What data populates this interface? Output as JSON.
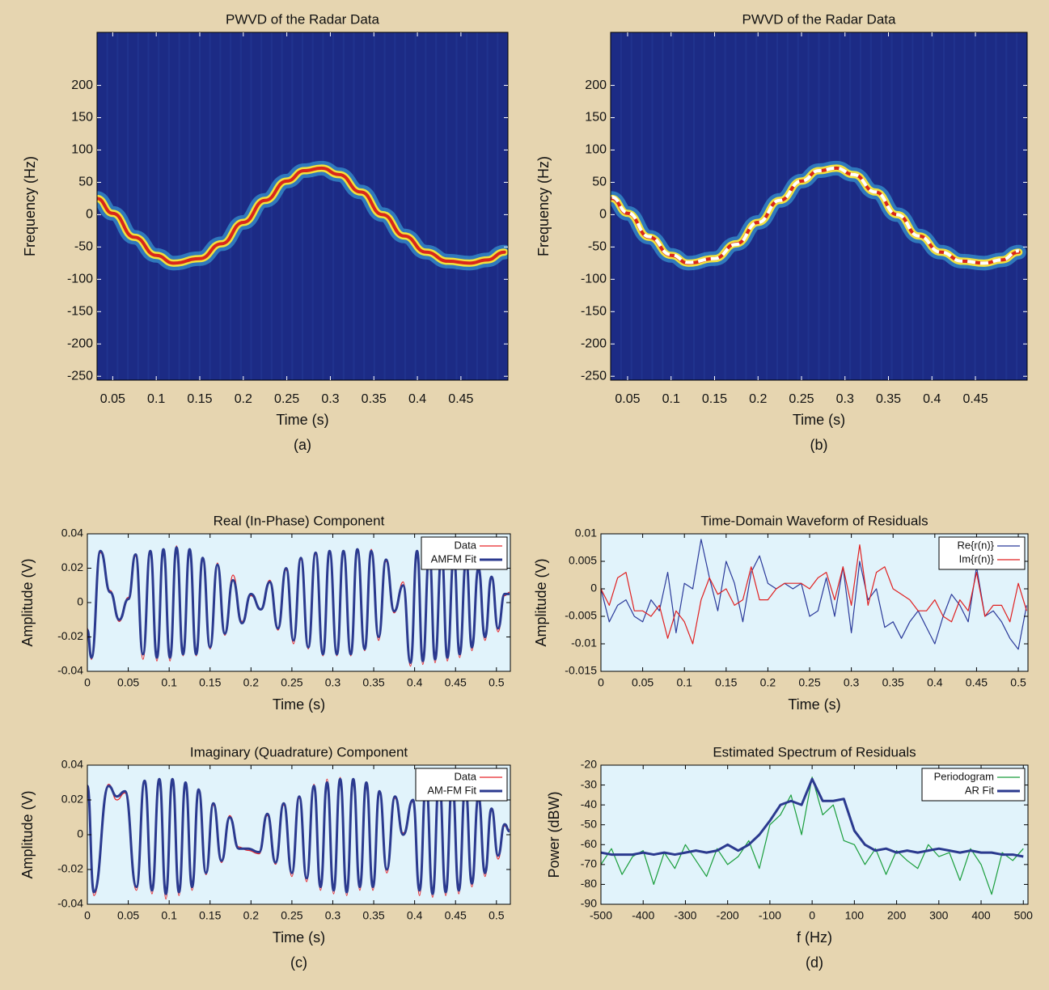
{
  "chart_data": [
    {
      "type": "tfr",
      "title": "PWVD of the Radar Data",
      "xlabel": "Time (s)",
      "ylabel": "Frequency (Hz)",
      "caption": "(a)",
      "xlim": [
        0.032,
        0.504
      ],
      "ylim": [
        -256,
        282
      ],
      "xticks": [
        0.05,
        0.1,
        0.15,
        0.2,
        0.25,
        0.3,
        0.35,
        0.4,
        0.45
      ],
      "yticks": [
        -250,
        -200,
        -150,
        -100,
        -50,
        0,
        50,
        100,
        150,
        200
      ],
      "x": [
        0.032,
        0.05,
        0.075,
        0.1,
        0.12,
        0.15,
        0.175,
        0.2,
        0.225,
        0.25,
        0.27,
        0.29,
        0.31,
        0.335,
        0.36,
        0.385,
        0.41,
        0.435,
        0.46,
        0.48,
        0.5
      ],
      "series": [
        {
          "style": "ridge",
          "color": "#d8261b",
          "values": [
            25,
            2,
            -35,
            -63,
            -75,
            -68,
            -45,
            -12,
            22,
            52,
            68,
            72,
            62,
            35,
            0,
            -33,
            -58,
            -72,
            -75,
            -70,
            -58
          ]
        }
      ]
    },
    {
      "type": "tfr",
      "title": "PWVD of the Radar Data",
      "xlabel": "Time (s)",
      "ylabel": "Frequency (Hz)",
      "caption": "(b)",
      "xlim": [
        0.0305,
        0.5095
      ],
      "ylim": [
        -256,
        282
      ],
      "xticks": [
        0.05,
        0.1,
        0.15,
        0.2,
        0.25,
        0.3,
        0.35,
        0.4,
        0.45
      ],
      "yticks": [
        -250,
        -200,
        -150,
        -100,
        -50,
        0,
        50,
        100,
        150,
        200
      ],
      "x": [
        0.032,
        0.05,
        0.075,
        0.1,
        0.12,
        0.15,
        0.175,
        0.2,
        0.225,
        0.25,
        0.27,
        0.29,
        0.31,
        0.335,
        0.36,
        0.385,
        0.41,
        0.435,
        0.46,
        0.48,
        0.5
      ],
      "series": [
        {
          "style": "ridge",
          "color": "#d8261b",
          "values": [
            25,
            2,
            -35,
            -63,
            -75,
            -68,
            -45,
            -12,
            22,
            52,
            68,
            72,
            62,
            35,
            0,
            -33,
            -58,
            -72,
            -75,
            -70,
            -58
          ]
        },
        {
          "style": "dashed",
          "color": "#ffffff",
          "values": [
            27,
            3,
            -34,
            -62,
            -74,
            -68,
            -46,
            -12,
            22,
            52,
            68,
            72,
            62,
            35,
            0,
            -33,
            -58,
            -72,
            -75,
            -70,
            -56
          ]
        }
      ]
    },
    {
      "type": "line",
      "smooth": true,
      "title": "Real (In-Phase) Component",
      "xlabel": "Time (s)",
      "ylabel": "Amplitude (V)",
      "legend": "upper right",
      "xlim": [
        0,
        0.517
      ],
      "ylim": [
        -0.04,
        0.04
      ],
      "xticks": [
        0,
        0.05,
        0.1,
        0.15,
        0.2,
        0.25,
        0.3,
        0.35,
        0.4,
        0.45,
        0.5
      ],
      "yticks": [
        -0.04,
        -0.02,
        0,
        0.02,
        0.04
      ],
      "x": [
        0,
        0.005,
        0.016,
        0.028,
        0.039,
        0.05,
        0.059,
        0.068,
        0.077,
        0.085,
        0.093,
        0.101,
        0.109,
        0.117,
        0.125,
        0.133,
        0.141,
        0.15,
        0.159,
        0.168,
        0.178,
        0.189,
        0.2,
        0.212,
        0.223,
        0.233,
        0.243,
        0.252,
        0.261,
        0.27,
        0.279,
        0.288,
        0.296,
        0.305,
        0.313,
        0.322,
        0.33,
        0.339,
        0.347,
        0.356,
        0.365,
        0.375,
        0.386,
        0.395,
        0.403,
        0.41,
        0.418,
        0.425,
        0.433,
        0.44,
        0.448,
        0.455,
        0.463,
        0.47,
        0.478,
        0.486,
        0.494,
        0.502,
        0.51,
        0.516
      ],
      "series": [
        {
          "name": "Data",
          "color": "#e8262b",
          "width": 1.2,
          "values": [
            -0.015,
            -0.033,
            0.029,
            0.007,
            -0.011,
            0.003,
            0.027,
            -0.033,
            0.029,
            -0.034,
            0.03,
            -0.034,
            0.033,
            -0.031,
            0.03,
            -0.031,
            0.025,
            -0.027,
            0.023,
            -0.019,
            0.016,
            -0.011,
            0.004,
            -0.004,
            0.013,
            -0.016,
            0.019,
            -0.024,
            0.025,
            -0.027,
            0.028,
            -0.031,
            0.029,
            -0.031,
            0.029,
            -0.031,
            0.03,
            -0.028,
            0.031,
            -0.022,
            0.024,
            -0.006,
            0.012,
            -0.037,
            0.029,
            -0.036,
            0.028,
            -0.035,
            0.028,
            -0.034,
            0.026,
            -0.032,
            0.024,
            -0.028,
            0.019,
            -0.022,
            0.014,
            -0.017,
            0.004,
            0.006
          ]
        },
        {
          "name": "AMFM Fit",
          "color": "#2b3a8f",
          "width": 3,
          "values": [
            -0.016,
            -0.032,
            0.03,
            0.006,
            -0.01,
            0.002,
            0.028,
            -0.03,
            0.03,
            -0.032,
            0.031,
            -0.032,
            0.032,
            -0.03,
            0.031,
            -0.03,
            0.026,
            -0.026,
            0.022,
            -0.018,
            0.013,
            -0.012,
            0.005,
            -0.004,
            0.012,
            -0.015,
            0.02,
            -0.022,
            0.026,
            -0.026,
            0.029,
            -0.03,
            0.03,
            -0.03,
            0.03,
            -0.03,
            0.031,
            -0.027,
            0.03,
            -0.02,
            0.025,
            -0.005,
            0.01,
            -0.035,
            0.03,
            -0.034,
            0.029,
            -0.033,
            0.029,
            -0.032,
            0.027,
            -0.03,
            0.025,
            -0.026,
            0.02,
            -0.02,
            0.015,
            -0.015,
            0.005,
            0.005
          ]
        }
      ]
    },
    {
      "type": "line",
      "title": "Time-Domain Waveform of Residuals",
      "xlabel": "Time (s)",
      "ylabel": "Amplitude (V)",
      "legend": "upper right",
      "xlim": [
        0,
        0.5116
      ],
      "ylim": [
        -0.015,
        0.01
      ],
      "xticks": [
        0,
        0.05,
        0.1,
        0.15,
        0.2,
        0.25,
        0.3,
        0.35,
        0.4,
        0.45,
        0.5
      ],
      "yticks": [
        -0.015,
        -0.01,
        -0.005,
        0,
        0.005,
        0.01
      ],
      "x": [
        0,
        0.01,
        0.02,
        0.03,
        0.04,
        0.05,
        0.06,
        0.07,
        0.08,
        0.09,
        0.1,
        0.11,
        0.12,
        0.13,
        0.14,
        0.15,
        0.16,
        0.17,
        0.18,
        0.19,
        0.2,
        0.21,
        0.22,
        0.23,
        0.24,
        0.25,
        0.26,
        0.27,
        0.28,
        0.29,
        0.3,
        0.31,
        0.32,
        0.33,
        0.34,
        0.35,
        0.36,
        0.37,
        0.38,
        0.39,
        0.4,
        0.41,
        0.42,
        0.43,
        0.44,
        0.45,
        0.46,
        0.47,
        0.48,
        0.49,
        0.5,
        0.51
      ],
      "series": [
        {
          "name": "Re{r(n)}",
          "color": "#2b3a9a",
          "width": 1.2,
          "values": [
            0,
            -0.006,
            -0.003,
            -0.002,
            -0.005,
            -0.006,
            -0.002,
            -0.004,
            0.003,
            -0.008,
            0.001,
            0.0,
            0.009,
            0.002,
            -0.004,
            0.005,
            0.001,
            -0.006,
            0.003,
            0.006,
            0.001,
            0.0,
            0.001,
            0.0,
            0.001,
            -0.005,
            -0.004,
            0.002,
            -0.005,
            0.004,
            -0.008,
            0.005,
            -0.002,
            0.0,
            -0.007,
            -0.006,
            -0.009,
            -0.006,
            -0.004,
            -0.007,
            -0.01,
            -0.005,
            -0.001,
            -0.003,
            -0.006,
            0.004,
            -0.005,
            -0.004,
            -0.006,
            -0.009,
            -0.011,
            -0.003
          ]
        },
        {
          "name": "Im{r(n)}",
          "color": "#e02020",
          "width": 1.2,
          "values": [
            0.0,
            -0.003,
            0.002,
            0.003,
            -0.004,
            -0.004,
            -0.005,
            -0.003,
            -0.009,
            -0.004,
            -0.006,
            -0.01,
            -0.002,
            0.002,
            -0.001,
            0.0,
            -0.003,
            -0.002,
            0.004,
            -0.002,
            -0.002,
            0.0,
            0.001,
            0.001,
            0.001,
            0.0,
            0.002,
            0.003,
            -0.002,
            0.004,
            -0.003,
            0.008,
            -0.003,
            0.003,
            0.004,
            0.0,
            -0.001,
            -0.002,
            -0.004,
            -0.004,
            -0.002,
            -0.005,
            -0.006,
            -0.002,
            -0.004,
            0.003,
            -0.005,
            -0.003,
            -0.003,
            -0.006,
            0.001,
            -0.004
          ]
        }
      ]
    },
    {
      "type": "line",
      "smooth": true,
      "title": "Imaginary (Quadrature) Component",
      "xlabel": "Time (s)",
      "ylabel": "Amplitude (V)",
      "caption": "(c)",
      "legend": "upper right",
      "xlim": [
        0,
        0.517
      ],
      "ylim": [
        -0.04,
        0.04
      ],
      "xticks": [
        0,
        0.05,
        0.1,
        0.15,
        0.2,
        0.25,
        0.3,
        0.35,
        0.4,
        0.45,
        0.5
      ],
      "yticks": [
        -0.04,
        -0.02,
        0,
        0.02,
        0.04
      ],
      "x": [
        0,
        0.008,
        0.026,
        0.036,
        0.046,
        0.06,
        0.07,
        0.079,
        0.088,
        0.096,
        0.104,
        0.112,
        0.12,
        0.128,
        0.136,
        0.145,
        0.154,
        0.164,
        0.174,
        0.185,
        0.196,
        0.21,
        0.22,
        0.23,
        0.24,
        0.25,
        0.259,
        0.268,
        0.277,
        0.285,
        0.293,
        0.301,
        0.309,
        0.317,
        0.325,
        0.333,
        0.341,
        0.349,
        0.357,
        0.366,
        0.376,
        0.386,
        0.398,
        0.406,
        0.414,
        0.422,
        0.43,
        0.438,
        0.446,
        0.454,
        0.462,
        0.47,
        0.478,
        0.486,
        0.494,
        0.502,
        0.51,
        0.516
      ],
      "series": [
        {
          "name": "Data",
          "color": "#e8262b",
          "width": 1.2,
          "values": [
            0.027,
            -0.035,
            0.029,
            0.02,
            0.024,
            -0.032,
            0.03,
            -0.034,
            0.031,
            -0.037,
            0.031,
            -0.035,
            0.029,
            -0.032,
            0.025,
            -0.023,
            0.017,
            -0.016,
            0.011,
            -0.007,
            -0.009,
            -0.011,
            0.011,
            -0.017,
            0.017,
            -0.024,
            0.021,
            -0.027,
            0.029,
            -0.032,
            0.032,
            -0.034,
            0.033,
            -0.035,
            0.031,
            -0.032,
            0.029,
            -0.032,
            0.024,
            -0.022,
            0.021,
            0.001,
            0.019,
            -0.035,
            0.029,
            -0.036,
            0.031,
            -0.035,
            0.029,
            -0.034,
            0.027,
            -0.03,
            0.021,
            -0.024,
            0.014,
            -0.014,
            0.005,
            0.003
          ]
        },
        {
          "name": "AM-FM Fit",
          "color": "#2b3a8f",
          "width": 3,
          "values": [
            0.028,
            -0.033,
            0.028,
            0.022,
            0.025,
            -0.03,
            0.031,
            -0.032,
            0.032,
            -0.034,
            0.032,
            -0.033,
            0.03,
            -0.03,
            0.026,
            -0.022,
            0.018,
            -0.015,
            0.01,
            -0.008,
            -0.008,
            -0.01,
            0.012,
            -0.016,
            0.018,
            -0.022,
            0.022,
            -0.025,
            0.028,
            -0.03,
            0.03,
            -0.032,
            0.032,
            -0.033,
            0.032,
            -0.03,
            0.03,
            -0.03,
            0.025,
            -0.02,
            0.022,
            0.0,
            0.02,
            -0.032,
            0.03,
            -0.034,
            0.032,
            -0.033,
            0.03,
            -0.032,
            0.028,
            -0.028,
            0.022,
            -0.022,
            0.015,
            -0.012,
            0.006,
            0.002
          ]
        }
      ]
    },
    {
      "type": "line",
      "title": "Estimated Spectrum of Residuals",
      "xlabel": "f (Hz)",
      "ylabel": "Power (dBW)",
      "caption": "(d)",
      "legend": "upper right",
      "xlim": [
        -500,
        511
      ],
      "ylim": [
        -90,
        -20
      ],
      "xticks": [
        -500,
        -400,
        -300,
        -200,
        -100,
        0,
        100,
        200,
        300,
        400,
        500
      ],
      "yticks": [
        -90,
        -80,
        -70,
        -60,
        -50,
        -40,
        -30,
        -20
      ],
      "x": [
        -500,
        -475,
        -450,
        -425,
        -400,
        -375,
        -350,
        -325,
        -300,
        -275,
        -250,
        -225,
        -200,
        -175,
        -150,
        -125,
        -100,
        -75,
        -50,
        -25,
        0,
        25,
        50,
        75,
        100,
        125,
        150,
        175,
        200,
        225,
        250,
        275,
        300,
        325,
        350,
        375,
        400,
        425,
        450,
        475,
        500
      ],
      "series": [
        {
          "name": "Periodogram",
          "color": "#1a9e3c",
          "width": 1.2,
          "values": [
            -70,
            -62,
            -75,
            -66,
            -63,
            -80,
            -64,
            -72,
            -60,
            -68,
            -76,
            -62,
            -70,
            -66,
            -58,
            -72,
            -50,
            -45,
            -35,
            -55,
            -26,
            -45,
            -40,
            -58,
            -60,
            -70,
            -62,
            -75,
            -63,
            -68,
            -72,
            -60,
            -66,
            -64,
            -78,
            -62,
            -70,
            -85,
            -64,
            -68,
            -62
          ]
        },
        {
          "name": "AR Fit",
          "color": "#2b3a8f",
          "width": 3,
          "values": [
            -64,
            -65,
            -65,
            -65,
            -64,
            -65,
            -64,
            -65,
            -64,
            -63,
            -64,
            -63,
            -60,
            -63,
            -60,
            -55,
            -48,
            -40,
            -38,
            -40,
            -27,
            -38,
            -38,
            -37,
            -53,
            -60,
            -63,
            -62,
            -64,
            -63,
            -64,
            -63,
            -62,
            -63,
            -64,
            -63,
            -64,
            -64,
            -65,
            -65,
            -66
          ]
        }
      ]
    }
  ]
}
